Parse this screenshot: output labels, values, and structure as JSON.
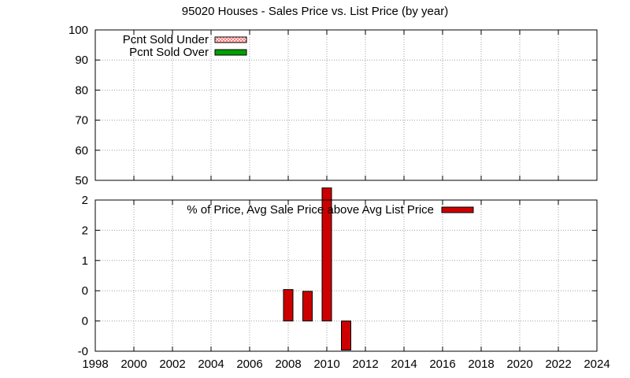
{
  "chart_data": [
    {
      "type": "bar",
      "title": "95020 Houses - Sales Price vs. List Price (by year)",
      "ylim": [
        50,
        100
      ],
      "yticks": [
        "50",
        "60",
        "70",
        "80",
        "90",
        "100"
      ],
      "ytick_values": [
        50,
        60,
        70,
        80,
        90,
        100
      ],
      "xlim": [
        1998,
        2024
      ],
      "grid": true,
      "legend_position": "top-left",
      "series": [
        {
          "name": "Pcnt Sold Under",
          "color": "#ff9999",
          "pattern": "crosshatch",
          "x": [],
          "values": []
        },
        {
          "name": "Pcnt Sold Over",
          "color": "#00a000",
          "pattern": "solid",
          "x": [],
          "values": []
        }
      ]
    },
    {
      "type": "bar",
      "ylim": [
        -0.5,
        2
      ],
      "yticks": [
        "-0",
        "0",
        "0",
        "1",
        "2",
        "2"
      ],
      "ytick_values": [
        -0.5,
        0,
        0.5,
        1,
        1.5,
        2
      ],
      "xlim": [
        1998,
        2024
      ],
      "xticks": [
        "1998",
        "2000",
        "2002",
        "2004",
        "2006",
        "2008",
        "2010",
        "2012",
        "2014",
        "2016",
        "2018",
        "2020",
        "2022",
        "2024"
      ],
      "xtick_values": [
        1998,
        2000,
        2002,
        2004,
        2006,
        2008,
        2010,
        2012,
        2014,
        2016,
        2018,
        2020,
        2022,
        2024
      ],
      "grid": true,
      "legend_position": "top-center",
      "series": [
        {
          "name": "% of Price, Avg Sale Price above Avg List Price",
          "color": "#cc0000",
          "x": [
            2008,
            2009,
            2010,
            2011
          ],
          "values": [
            0.52,
            0.49,
            2.2,
            -0.48
          ]
        }
      ]
    }
  ]
}
